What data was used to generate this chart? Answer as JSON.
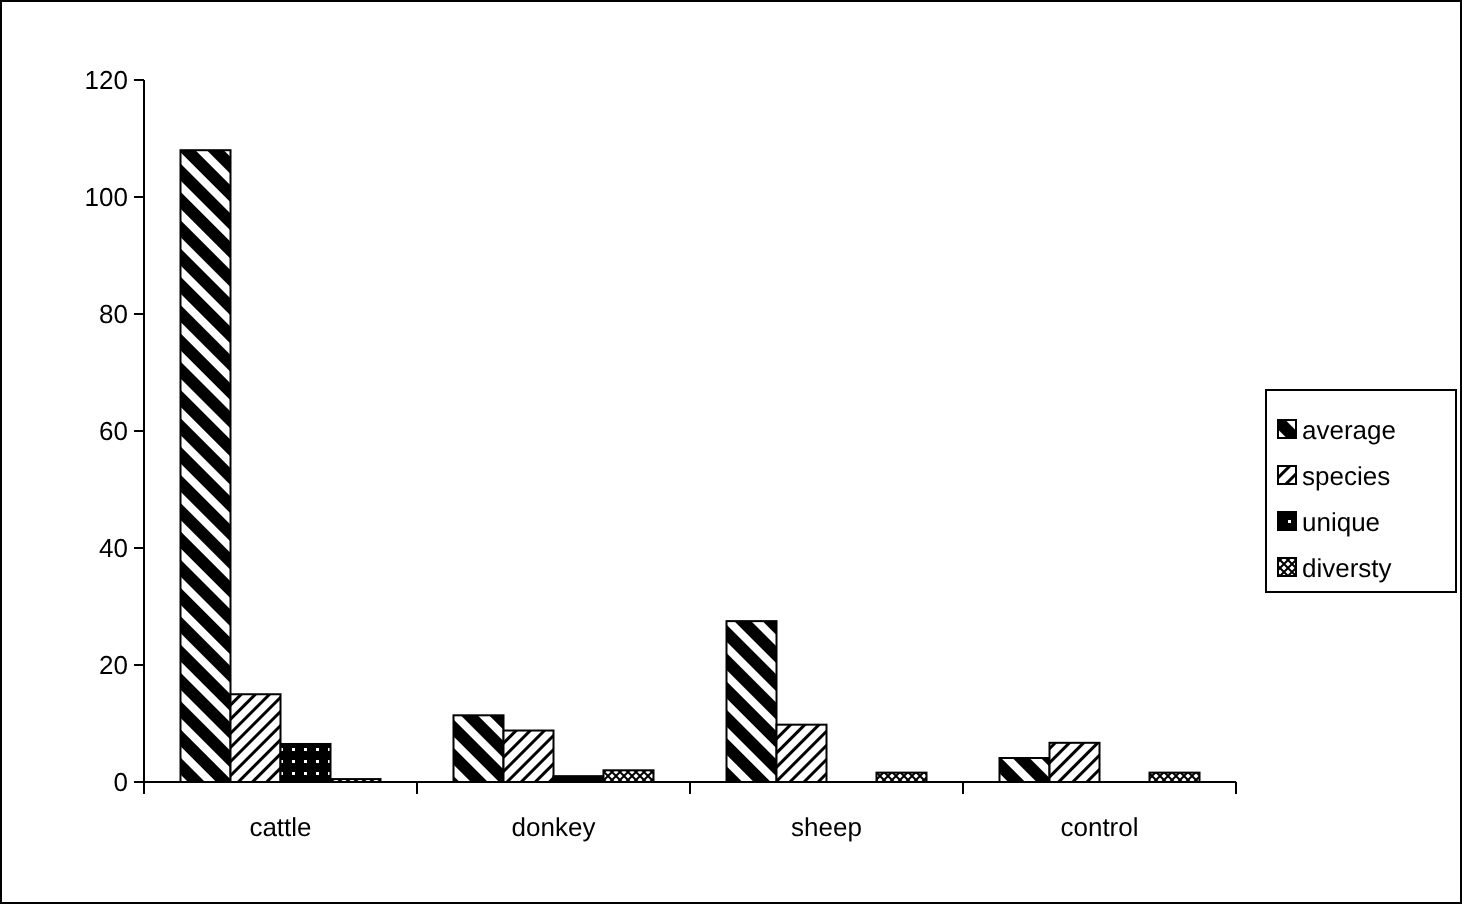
{
  "chart_data": {
    "type": "bar",
    "categories": [
      "cattle",
      "donkey",
      "sheep",
      "control"
    ],
    "series": [
      {
        "name": "average",
        "color": "#000000",
        "values": [
          108,
          11.4,
          27.5,
          4.1
        ]
      },
      {
        "name": "species",
        "color": "#000000",
        "values": [
          15,
          8.8,
          9.8,
          6.7
        ]
      },
      {
        "name": "unique",
        "color": "#000000",
        "values": [
          6.5,
          1,
          null,
          null
        ]
      },
      {
        "name": "diversty",
        "color": "#000000",
        "values": [
          0.5,
          2,
          1.6,
          1.6
        ]
      }
    ],
    "ylim": [
      0,
      120
    ],
    "yticks": [
      0,
      20,
      40,
      60,
      80,
      100,
      120
    ],
    "grid": false,
    "legend": "right"
  }
}
